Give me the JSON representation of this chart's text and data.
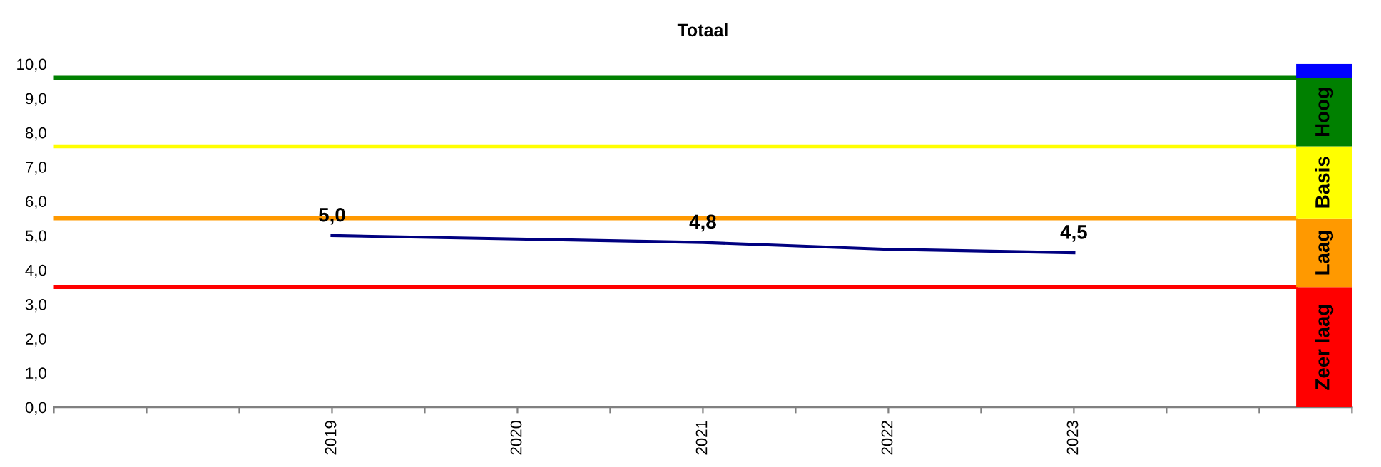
{
  "chart_data": {
    "type": "line",
    "title": "Totaal",
    "x": [
      2019,
      2020,
      2021,
      2022,
      2023
    ],
    "series": [
      {
        "color": "#000080",
        "values": [
          5.0,
          4.9,
          4.8,
          4.6,
          4.5
        ],
        "value_labels": [
          "5,0",
          null,
          "4,8",
          null,
          "4,5"
        ]
      }
    ],
    "xlim": [
      2017.5,
      2024.5
    ],
    "xticks": [
      {
        "value": 2017.5,
        "label": null
      },
      {
        "value": 2018,
        "label": null
      },
      {
        "value": 2018.5,
        "label": null
      },
      2019,
      {
        "value": 2019.5,
        "label": null
      },
      2020,
      {
        "value": 2020.5,
        "label": null
      },
      2021,
      {
        "value": 2021.5,
        "label": null
      },
      2022,
      {
        "value": 2022.5,
        "label": null
      },
      2023,
      {
        "value": 2023.5,
        "label": null
      },
      {
        "value": 2024,
        "label": null
      },
      {
        "value": 2024.5,
        "label": null
      }
    ],
    "ylim": [
      0,
      10
    ],
    "yticks": [
      {
        "value": 0,
        "label": "0,0"
      },
      {
        "value": 1,
        "label": "1,0"
      },
      {
        "value": 2,
        "label": "2,0"
      },
      {
        "value": 3,
        "label": "3,0"
      },
      {
        "value": 4,
        "label": "4,0"
      },
      {
        "value": 5,
        "label": "5,0"
      },
      {
        "value": 6,
        "label": "6,0"
      },
      {
        "value": 7,
        "label": "7,0"
      },
      {
        "value": 8,
        "label": "8,0"
      },
      {
        "value": 9,
        "label": "9,0"
      },
      {
        "value": 10,
        "label": "10,0"
      }
    ],
    "ref_lines": [
      {
        "axis": "y",
        "value": 9.6,
        "label": null,
        "color": "#008000"
      },
      {
        "axis": "y",
        "value": 7.6,
        "label": null,
        "color": "#ffff00"
      },
      {
        "axis": "y",
        "value": 5.5,
        "label": null,
        "color": "#ff9900"
      },
      {
        "axis": "y",
        "value": 3.5,
        "label": null,
        "color": "#ff0000"
      }
    ],
    "bands": [
      {
        "axis": "y",
        "from": 0,
        "to": 3.5,
        "label": "Zeer laag",
        "color": "#ff0000"
      },
      {
        "axis": "y",
        "from": 3.5,
        "to": 5.5,
        "label": "Laag",
        "color": "#ff9900"
      },
      {
        "axis": "y",
        "from": 5.5,
        "to": 7.6,
        "label": "Basis",
        "color": "#ffff00"
      },
      {
        "axis": "y",
        "from": 7.6,
        "to": 9.6,
        "label": "Hoog",
        "color": "#008000"
      },
      {
        "axis": "y",
        "from": 9.6,
        "to": 10,
        "label": null,
        "color": "#0000ff"
      }
    ],
    "grid": false,
    "legend": false,
    "marker": "none",
    "line_style": "solid"
  }
}
